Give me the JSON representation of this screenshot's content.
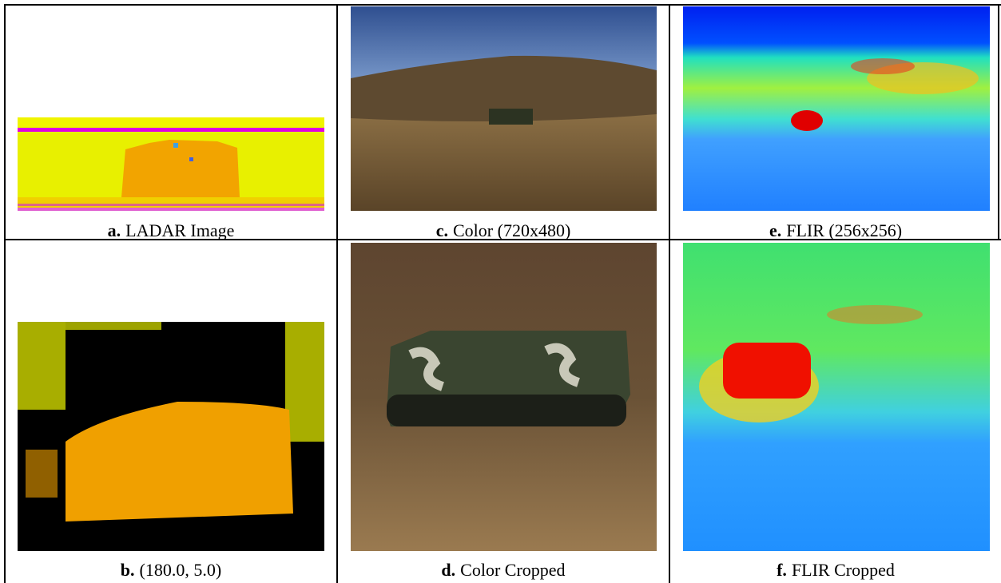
{
  "figure": {
    "panels": [
      {
        "label": "a.",
        "caption": "LADAR Image"
      },
      {
        "label": "c.",
        "caption": "Color (720x480)"
      },
      {
        "label": "e.",
        "caption": "FLIR (256x256)"
      },
      {
        "label": "b.",
        "caption": "(180.0, 5.0)"
      },
      {
        "label": "d.",
        "caption": "Color Cropped"
      },
      {
        "label": "f.",
        "caption": "FLIR Cropped"
      }
    ]
  }
}
